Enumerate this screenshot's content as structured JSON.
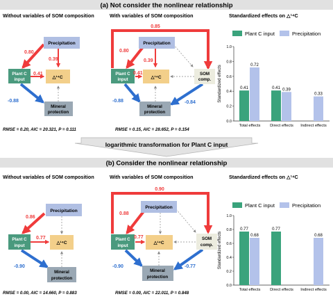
{
  "panel_a": {
    "header": "(a)  Not consider the nonlinear relationship",
    "diagram1_title": "Without variables of SOM composition",
    "diagram2_title": "With variables of SOM composition",
    "chart_title": "Standardized effects on △¹⁴C",
    "d1": {
      "nodes": {
        "precip": "Precipitation",
        "plant_l1": "Plant C",
        "plant_l2": "input",
        "c14": "△¹⁴C",
        "mineral_l1": "Mineral",
        "mineral_l2": "protection"
      },
      "edges": {
        "precip_to_plant": "0.80",
        "precip_to_c14": "0.39",
        "plant_to_c14": "0.41",
        "plant_to_mineral": "-0.88"
      },
      "fit": "RMSE = 0.20,  AIC = 20.321,  P = 0.111"
    },
    "d2": {
      "nodes": {
        "precip": "Precipitation",
        "plant_l1": "Plant C",
        "plant_l2": "input",
        "c14": "△¹⁴C",
        "mineral_l1": "Mineral",
        "mineral_l2": "protection",
        "som_l1": "SOM",
        "som_l2": "comp."
      },
      "edges": {
        "top_loop": "0.85",
        "precip_to_plant": "0.80",
        "precip_to_c14": "0.39",
        "plant_to_c14": "0.41",
        "plant_to_mineral": "-0.88",
        "som_to_mineral": "-0.84"
      },
      "fit": "RMSE = 0.15,  AIC = 28.652,  P = 0.154"
    }
  },
  "transform_label": "logarithmic transformation for Plant C input",
  "panel_b": {
    "header": "(b)  Consider the nonlinear relationship",
    "diagram1_title": "Without variables of SOM composition",
    "diagram2_title": "With variables of SOM composition",
    "chart_title": "Standardized effects on △¹⁴C",
    "d1": {
      "nodes": {
        "precip": "Precipitation",
        "plant_l1": "Plant C",
        "plant_l2": "input",
        "c14": "△¹⁴C",
        "mineral_l1": "Mineral",
        "mineral_l2": "protection"
      },
      "edges": {
        "precip_to_plant": "0.86",
        "plant_to_c14": "0.77",
        "plant_to_mineral": "-0.90"
      },
      "fit": "RMSE = 0.00,  AIC = 14.660,  P = 0.883"
    },
    "d2": {
      "nodes": {
        "precip": "Precipitation",
        "plant_l1": "Plant C",
        "plant_l2": "input",
        "c14": "△¹⁴C",
        "mineral_l1": "Mineral",
        "mineral_l2": "protection",
        "som_l1": "SOM",
        "som_l2": "comp."
      },
      "edges": {
        "top_loop": "0.90",
        "precip_to_plant": "0.88",
        "plant_to_c14": "0.77",
        "plant_to_mineral": "-0.90",
        "som_to_mineral": "-0.77"
      },
      "fit": "RMSE = 0.00,  AIC = 22.011,  P = 0.848"
    }
  },
  "colors": {
    "positive": "#ef3b3b",
    "negative": "#2e6fcf",
    "plant": "#4a9a7e",
    "precip": "#b0bfe3",
    "c14": "#f3cf8a",
    "mineral": "#9aa8b4",
    "som": "#ececdf",
    "bar_plant": "#3aa37c",
    "bar_precip": "#b3c2ea",
    "header_bg": "#e1e1e1"
  },
  "chart_data": [
    {
      "type": "bar",
      "title": "Standardized effects on △¹⁴C",
      "ylabel": "Standardized effects",
      "categories": [
        "Total  effects",
        "Direct  effects",
        "Indirect  effects"
      ],
      "series": [
        {
          "name": "Plant C input",
          "values": [
            0.41,
            0.41,
            null
          ]
        },
        {
          "name": "Precipitation",
          "values": [
            0.72,
            0.39,
            0.33
          ]
        }
      ],
      "ylim": [
        0,
        1.0
      ],
      "legend": "top",
      "data_labels": [
        [
          "0.41",
          "0.41",
          ""
        ],
        [
          "0.72",
          "0.39",
          "0.33"
        ]
      ]
    },
    {
      "type": "bar",
      "title": "Standardized effects on △¹⁴C",
      "ylabel": "Standardized effects",
      "categories": [
        "Total  effects",
        "Direct  effects",
        "Indirect  effects"
      ],
      "series": [
        {
          "name": "Plant C input",
          "values": [
            0.77,
            0.77,
            null
          ]
        },
        {
          "name": "Precipitation",
          "values": [
            0.68,
            null,
            0.68
          ]
        }
      ],
      "ylim": [
        0,
        1.0
      ],
      "legend": "top",
      "data_labels": [
        [
          "0.77",
          "0.77",
          ""
        ],
        [
          "0.68",
          "",
          "0.68"
        ]
      ]
    }
  ]
}
